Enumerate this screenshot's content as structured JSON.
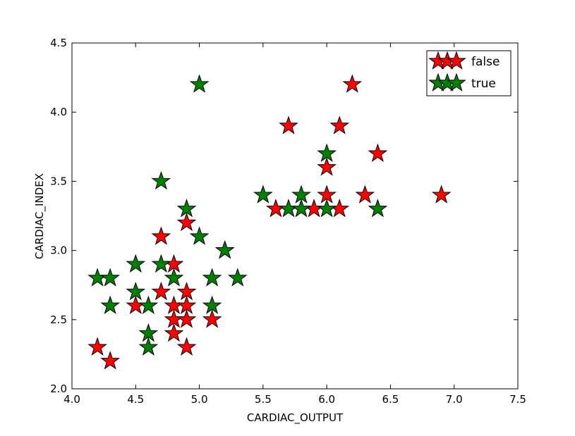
{
  "chart_data": {
    "type": "scatter",
    "title": "",
    "xlabel": "CARDIAC_OUTPUT",
    "ylabel": "CARDIAC_INDEX",
    "xlim": [
      4.0,
      7.5
    ],
    "ylim": [
      2.0,
      4.5
    ],
    "xticks": [
      "4.0",
      "4.5",
      "5.0",
      "5.5",
      "6.0",
      "6.5",
      "7.0",
      "7.5"
    ],
    "yticks": [
      "2.0",
      "2.5",
      "3.0",
      "3.5",
      "4.0",
      "4.5"
    ],
    "grid": false,
    "legend_position": "top-right",
    "marker": "star",
    "series": [
      {
        "name": "false",
        "color": "#ff0000",
        "points": [
          [
            4.2,
            2.3
          ],
          [
            4.3,
            2.2
          ],
          [
            4.5,
            2.6
          ],
          [
            4.7,
            2.7
          ],
          [
            4.7,
            3.1
          ],
          [
            4.8,
            2.9
          ],
          [
            4.8,
            2.6
          ],
          [
            4.8,
            2.5
          ],
          [
            4.8,
            2.4
          ],
          [
            4.9,
            3.2
          ],
          [
            4.9,
            2.7
          ],
          [
            4.9,
            2.6
          ],
          [
            4.9,
            2.5
          ],
          [
            4.9,
            2.3
          ],
          [
            5.1,
            2.5
          ],
          [
            5.6,
            3.3
          ],
          [
            5.7,
            3.9
          ],
          [
            5.9,
            3.3
          ],
          [
            6.0,
            3.6
          ],
          [
            6.0,
            3.4
          ],
          [
            6.1,
            3.9
          ],
          [
            6.1,
            3.3
          ],
          [
            6.2,
            4.2
          ],
          [
            6.3,
            3.4
          ],
          [
            6.4,
            3.7
          ],
          [
            6.9,
            3.4
          ]
        ]
      },
      {
        "name": "true",
        "color": "#008000",
        "points": [
          [
            4.2,
            2.8
          ],
          [
            4.3,
            2.8
          ],
          [
            4.3,
            2.6
          ],
          [
            4.5,
            2.9
          ],
          [
            4.5,
            2.7
          ],
          [
            4.6,
            2.6
          ],
          [
            4.6,
            2.4
          ],
          [
            4.6,
            2.3
          ],
          [
            4.7,
            3.5
          ],
          [
            4.7,
            2.9
          ],
          [
            4.8,
            2.8
          ],
          [
            4.9,
            3.3
          ],
          [
            5.0,
            4.2
          ],
          [
            5.0,
            3.1
          ],
          [
            5.1,
            2.8
          ],
          [
            5.1,
            2.6
          ],
          [
            5.2,
            3.0
          ],
          [
            5.2,
            3.0
          ],
          [
            5.3,
            2.8
          ],
          [
            5.5,
            3.4
          ],
          [
            5.7,
            3.3
          ],
          [
            5.8,
            3.4
          ],
          [
            5.8,
            3.3
          ],
          [
            6.0,
            3.7
          ],
          [
            6.0,
            3.3
          ],
          [
            6.4,
            3.3
          ]
        ]
      }
    ]
  }
}
